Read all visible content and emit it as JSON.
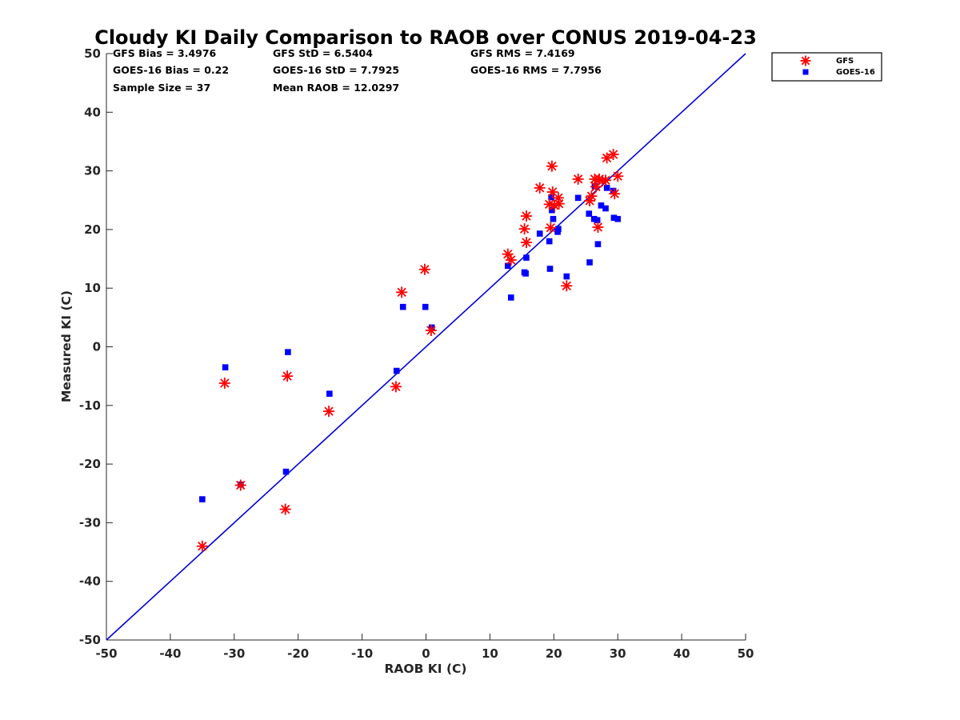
{
  "chart_data": {
    "type": "scatter",
    "title": "Cloudy KI Daily Comparison to RAOB over CONUS 2019-04-23",
    "xlabel": "RAOB KI (C)",
    "ylabel": "Measured KI (C)",
    "xlim": [
      -50,
      50
    ],
    "ylim": [
      -50,
      50
    ],
    "xticks": [
      -50,
      -40,
      -30,
      -20,
      -10,
      0,
      10,
      20,
      30,
      40,
      50
    ],
    "yticks": [
      -50,
      -40,
      -30,
      -20,
      -10,
      0,
      10,
      20,
      30,
      40,
      50
    ],
    "xtick_labels": [
      "-50",
      "-40",
      "-30",
      "-20",
      "-10",
      "0",
      "10",
      "20",
      "30",
      "40",
      "50"
    ],
    "ytick_labels": [
      "-50",
      "-40",
      "-30",
      "-20",
      "-10",
      "0",
      "10",
      "20",
      "30",
      "40",
      "50"
    ],
    "grid": false,
    "legend_position": "outside-top-right",
    "reference_line": {
      "color": "#0000dd",
      "from": [
        -50,
        -50
      ],
      "to": [
        50,
        50
      ]
    },
    "stats": [
      {
        "label": "GFS Bias = 3.4976"
      },
      {
        "label": "GFS StD = 6.5404"
      },
      {
        "label": "GFS RMS = 7.4169"
      },
      {
        "label": "GOES-16 Bias = 0.22"
      },
      {
        "label": "GOES-16 StD = 7.7925"
      },
      {
        "label": "GOES-16 RMS = 7.7956"
      },
      {
        "label": "Sample Size = 37"
      },
      {
        "label": "Mean RAOB = 12.0297"
      }
    ],
    "series": [
      {
        "name": "GFS",
        "marker": "asterisk",
        "color": "#ff0000",
        "points": [
          [
            -35,
            -34
          ],
          [
            -31.5,
            -6.2
          ],
          [
            -29,
            -23.6
          ],
          [
            -22,
            -27.7
          ],
          [
            -21.7,
            -5
          ],
          [
            -15.2,
            -11
          ],
          [
            -4.7,
            -6.8
          ],
          [
            -3.8,
            9.3
          ],
          [
            -0.2,
            13.2
          ],
          [
            0.8,
            2.8
          ],
          [
            12.8,
            15.8
          ],
          [
            13.3,
            14.8
          ],
          [
            15.4,
            20.1
          ],
          [
            15.7,
            22.3
          ],
          [
            15.7,
            17.8
          ],
          [
            17.8,
            27.1
          ],
          [
            19.3,
            24.3
          ],
          [
            19.5,
            20.3
          ],
          [
            19.7,
            30.8
          ],
          [
            19.8,
            26.4
          ],
          [
            20.1,
            24.1
          ],
          [
            20.7,
            25.4
          ],
          [
            20.8,
            24.4
          ],
          [
            22,
            10.4
          ],
          [
            23.8,
            28.6
          ],
          [
            25.6,
            24.9
          ],
          [
            25.9,
            25.7
          ],
          [
            26.4,
            28.6
          ],
          [
            26.6,
            27.3
          ],
          [
            26.9,
            20.4
          ],
          [
            27.1,
            28.6
          ],
          [
            27.6,
            28.3
          ],
          [
            28.1,
            28.4
          ],
          [
            28.3,
            32.2
          ],
          [
            29.3,
            32.8
          ],
          [
            29.5,
            26.1
          ],
          [
            30,
            29.1
          ]
        ]
      },
      {
        "name": "GOES-16",
        "marker": "square",
        "color": "#0000ff",
        "points": [
          [
            -35,
            -26
          ],
          [
            -31.4,
            -3.5
          ],
          [
            -29,
            -23.5
          ],
          [
            -21.9,
            -21.3
          ],
          [
            -21.6,
            -0.9
          ],
          [
            -15.1,
            -8
          ],
          [
            -4.6,
            -4.1
          ],
          [
            -3.6,
            6.8
          ],
          [
            -0.1,
            6.8
          ],
          [
            0.9,
            3.3
          ],
          [
            12.8,
            13.8
          ],
          [
            13.3,
            8.4
          ],
          [
            15.4,
            12.7
          ],
          [
            15.6,
            12.5
          ],
          [
            15.7,
            15.2
          ],
          [
            17.8,
            19.3
          ],
          [
            19.3,
            18
          ],
          [
            19.4,
            13.3
          ],
          [
            19.6,
            25.5
          ],
          [
            19.7,
            23.3
          ],
          [
            19.9,
            21.8
          ],
          [
            20.6,
            19.6
          ],
          [
            20.7,
            20.1
          ],
          [
            22,
            12
          ],
          [
            23.8,
            25.4
          ],
          [
            25.5,
            22.7
          ],
          [
            25.6,
            14.4
          ],
          [
            26.3,
            21.8
          ],
          [
            26.8,
            21.6
          ],
          [
            26.9,
            17.5
          ],
          [
            27.4,
            24.1
          ],
          [
            28.1,
            23.6
          ],
          [
            28.3,
            27.1
          ],
          [
            29.3,
            26.6
          ],
          [
            29.4,
            22
          ],
          [
            30,
            21.8
          ],
          [
            26.4,
            27.4
          ]
        ]
      }
    ]
  }
}
